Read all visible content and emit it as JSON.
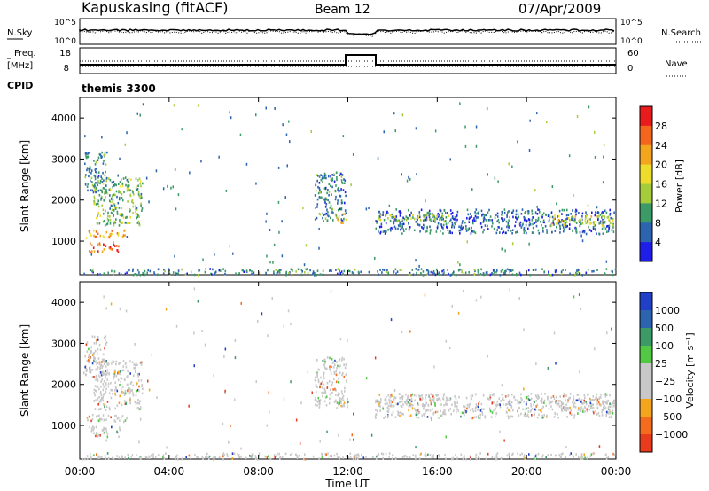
{
  "header": {
    "site": "Kapuskasing (fitACF)",
    "beam": "Beam 12",
    "date": "07/Apr/2009"
  },
  "top_panel": {
    "left_label": "N.Sky",
    "right_label": "N.Search",
    "yticks_left": [
      "10^5",
      "10^0"
    ],
    "yticks_right": [
      "10^5",
      "10^0"
    ]
  },
  "freq_panel": {
    "left_label_1": "Freq.",
    "left_label_2": "[MHz]",
    "right_label": "Nave",
    "yticks_left": [
      "18",
      "8"
    ],
    "yticks_right": [
      "60",
      "0"
    ],
    "cpid_label": "CPID",
    "cpid_value": "themis 3300"
  },
  "power_panel": {
    "ylabel": "Slant Range [km]",
    "colorbar_label": "Power [dB]",
    "colorbar_ticks": [
      "28",
      "24",
      "20",
      "16",
      "12",
      "8",
      "4"
    ],
    "colorbar_colors": [
      "#e81c1c",
      "#f4661e",
      "#f4a51e",
      "#eedc2c",
      "#a6cc3c",
      "#3c9a66",
      "#2c64b0",
      "#1e1ee8"
    ]
  },
  "velocity_panel": {
    "ylabel": "Slant Range [km]",
    "colorbar_label": "Velocity [m s⁻¹]",
    "colorbar_ticks": [
      "1000",
      "500",
      "100",
      "25",
      "−25",
      "−100",
      "−500",
      "−1000"
    ],
    "colorbar_colors": [
      "#2040c8",
      "#2c64b0",
      "#3c9a66",
      "#52c844",
      "#c8c8c8",
      "#c8c8c8",
      "#f4a51e",
      "#f46c1e",
      "#e83c1c"
    ]
  },
  "xaxis": {
    "label": "Time UT",
    "ticks": [
      "00:00",
      "04:00",
      "08:00",
      "12:00",
      "16:00",
      "20:00",
      "00:00"
    ]
  },
  "chart_data": {
    "type": "heatmap",
    "x_range_hours": [
      0,
      24
    ],
    "y_range_km": [
      180,
      4500
    ],
    "y_ticks": [
      1000,
      2000,
      3000,
      4000
    ],
    "power_scale_db": [
      0,
      32
    ],
    "velocity_scale_ms": [
      -1000,
      1000
    ],
    "echo_regions": [
      {
        "t0": 0.2,
        "t1": 2.1,
        "r0": 1100,
        "r1": 1300,
        "power": 22
      },
      {
        "t0": 0.4,
        "t1": 1.8,
        "r0": 750,
        "r1": 1000,
        "power": 26
      },
      {
        "t0": 0.6,
        "t1": 2.8,
        "r0": 1400,
        "r1": 2600,
        "power": 12
      },
      {
        "t0": 0.2,
        "t1": 1.2,
        "r0": 2200,
        "r1": 3200,
        "power": 8
      },
      {
        "t0": 10.5,
        "t1": 11.9,
        "r0": 1500,
        "r1": 2700,
        "power": 8
      },
      {
        "t0": 11.4,
        "t1": 12.0,
        "r0": 1450,
        "r1": 1700,
        "power": 18
      },
      {
        "t0": 13.2,
        "t1": 23.9,
        "r0": 1200,
        "r1": 1800,
        "power": 6
      },
      {
        "t0": 13.3,
        "t1": 16.5,
        "r0": 1500,
        "r1": 1700,
        "power": 14
      },
      {
        "t0": 21.0,
        "t1": 23.9,
        "r0": 1400,
        "r1": 1650,
        "power": 16
      },
      {
        "t0": 0.0,
        "t1": 24.0,
        "r0": 200,
        "r1": 350,
        "power": 8
      }
    ]
  }
}
